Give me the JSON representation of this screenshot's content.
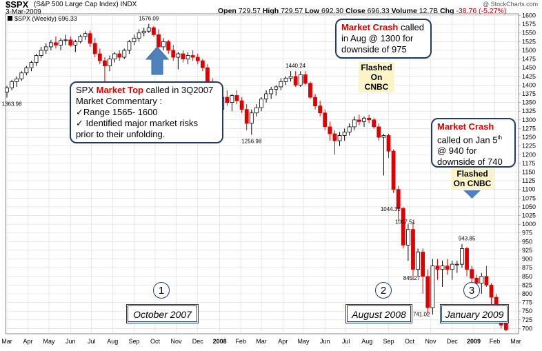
{
  "header": {
    "symbol": "$SPX",
    "name": "(S&P 500 Large Cap Index)",
    "exchange": "INDX",
    "watermark": "@ StockCharts.com",
    "date": "3-Mar-2009",
    "stats": {
      "open_label": "Open",
      "open": "729.57",
      "high_label": "High",
      "high": "729.57",
      "low_label": "Low",
      "low": "692.30",
      "close_label": "Close",
      "close": "696.33",
      "volume_label": "Volume",
      "volume": "12.7B",
      "chg_label": "Chg",
      "chg": "-38.76 (-5.27%)"
    },
    "legend": "$SPX (Weekly) 696.33"
  },
  "callouts": {
    "market_top": {
      "prefix": "SPX ",
      "highlight": "Market Top",
      "rest": " called in 3Q2007",
      "line2": "Market Commentary :",
      "line3": "✓Range 1565- 1600",
      "line4": "✓ Identified  major  market risks",
      "line5": "prior to their unfolding."
    },
    "crash_aug": {
      "highlight": "Market Crash",
      "rest": " called",
      "line2": "in Aug @ 1300 for",
      "line3": "downside of 975"
    },
    "crash_jan": {
      "highlight": "Market Crash",
      "line2a": "called on Jan 5",
      "line2sup": "th",
      "line3": "@ 940 for",
      "line4": "downside of 740"
    },
    "flash1": {
      "line1": "Flashed",
      "line2": "On CNBC"
    },
    "flash2": {
      "line1": "Flashed",
      "line2": "On CNBC"
    }
  },
  "markers": [
    {
      "number": "1",
      "label": "October 2007"
    },
    {
      "number": "2",
      "label": "August 2008"
    },
    {
      "number": "3",
      "label": "January 2009"
    }
  ],
  "chart_data": {
    "type": "bar",
    "style": "weekly-ohlc-candles",
    "ylim": [
      685,
      1605
    ],
    "ticks": {
      "min": 700,
      "max": 1600,
      "step": 25
    },
    "x_labels": [
      {
        "t": 0,
        "label": "Mar"
      },
      {
        "t": 4.3,
        "label": "Apr"
      },
      {
        "t": 8.6,
        "label": "May"
      },
      {
        "t": 13,
        "label": "Jun"
      },
      {
        "t": 17.3,
        "label": "Jul"
      },
      {
        "t": 21.6,
        "label": "Aug"
      },
      {
        "t": 26,
        "label": "Sep"
      },
      {
        "t": 30.3,
        "label": "Oct"
      },
      {
        "t": 34.6,
        "label": "Nov"
      },
      {
        "t": 39,
        "label": "Dec"
      },
      {
        "t": 43.5,
        "label": "2008",
        "bold": true
      },
      {
        "t": 47.8,
        "label": "Feb"
      },
      {
        "t": 52,
        "label": "Mar"
      },
      {
        "t": 56.4,
        "label": "Apr"
      },
      {
        "t": 60.6,
        "label": "May"
      },
      {
        "t": 65,
        "label": "Jun"
      },
      {
        "t": 69.3,
        "label": "Jul"
      },
      {
        "t": 73.6,
        "label": "Aug"
      },
      {
        "t": 78,
        "label": "Sep"
      },
      {
        "t": 82.3,
        "label": "Oct"
      },
      {
        "t": 86.6,
        "label": "Nov"
      },
      {
        "t": 91,
        "label": "Dec"
      },
      {
        "t": 95.4,
        "label": "2009",
        "bold": true
      },
      {
        "t": 99.7,
        "label": "Feb"
      },
      {
        "t": 104,
        "label": "Mar"
      }
    ],
    "candles": [
      [
        1380,
        1398,
        1364,
        1392
      ],
      [
        1392,
        1415,
        1385,
        1410
      ],
      [
        1410,
        1425,
        1395,
        1418
      ],
      [
        1418,
        1440,
        1412,
        1435
      ],
      [
        1435,
        1455,
        1428,
        1450
      ],
      [
        1450,
        1470,
        1440,
        1465
      ],
      [
        1465,
        1490,
        1455,
        1485
      ],
      [
        1485,
        1510,
        1478,
        1500
      ],
      [
        1500,
        1520,
        1490,
        1510
      ],
      [
        1510,
        1530,
        1500,
        1522
      ],
      [
        1522,
        1540,
        1505,
        1515
      ],
      [
        1515,
        1535,
        1500,
        1528
      ],
      [
        1528,
        1545,
        1515,
        1530
      ],
      [
        1530,
        1540,
        1510,
        1515
      ],
      [
        1515,
        1530,
        1495,
        1525
      ],
      [
        1525,
        1545,
        1520,
        1540
      ],
      [
        1540,
        1555,
        1530,
        1548
      ],
      [
        1548,
        1556,
        1510,
        1520
      ],
      [
        1520,
        1535,
        1480,
        1490
      ],
      [
        1490,
        1505,
        1460,
        1470
      ],
      [
        1470,
        1480,
        1400,
        1455
      ],
      [
        1455,
        1485,
        1440,
        1475
      ],
      [
        1475,
        1495,
        1465,
        1490
      ],
      [
        1490,
        1500,
        1470,
        1480
      ],
      [
        1480,
        1505,
        1475,
        1500
      ],
      [
        1500,
        1530,
        1490,
        1525
      ],
      [
        1525,
        1545,
        1515,
        1535
      ],
      [
        1535,
        1560,
        1525,
        1550
      ],
      [
        1550,
        1565,
        1540,
        1555
      ],
      [
        1555,
        1576,
        1550,
        1565
      ],
      [
        1565,
        1570,
        1540,
        1545
      ],
      [
        1545,
        1560,
        1500,
        1510
      ],
      [
        1510,
        1535,
        1500,
        1525
      ],
      [
        1525,
        1530,
        1490,
        1500
      ],
      [
        1500,
        1515,
        1470,
        1480
      ],
      [
        1480,
        1495,
        1445,
        1490
      ],
      [
        1490,
        1500,
        1465,
        1475
      ],
      [
        1475,
        1495,
        1460,
        1485
      ],
      [
        1485,
        1500,
        1470,
        1480
      ],
      [
        1480,
        1490,
        1460,
        1470
      ],
      [
        1470,
        1475,
        1440,
        1450
      ],
      [
        1450,
        1460,
        1400,
        1410
      ],
      [
        1410,
        1420,
        1360,
        1380
      ],
      [
        1380,
        1390,
        1305,
        1330
      ],
      [
        1330,
        1380,
        1320,
        1365
      ],
      [
        1365,
        1385,
        1340,
        1350
      ],
      [
        1350,
        1375,
        1325,
        1370
      ],
      [
        1370,
        1385,
        1345,
        1355
      ],
      [
        1355,
        1365,
        1320,
        1330
      ],
      [
        1330,
        1345,
        1270,
        1290
      ],
      [
        1290,
        1330,
        1257,
        1320
      ],
      [
        1320,
        1345,
        1310,
        1335
      ],
      [
        1335,
        1365,
        1325,
        1360
      ],
      [
        1360,
        1385,
        1350,
        1375
      ],
      [
        1375,
        1395,
        1360,
        1388
      ],
      [
        1388,
        1400,
        1370,
        1395
      ],
      [
        1395,
        1420,
        1385,
        1410
      ],
      [
        1410,
        1425,
        1400,
        1420
      ],
      [
        1420,
        1440,
        1410,
        1425
      ],
      [
        1425,
        1440,
        1395,
        1400
      ],
      [
        1400,
        1440,
        1395,
        1430
      ],
      [
        1430,
        1440,
        1400,
        1405
      ],
      [
        1405,
        1410,
        1360,
        1365
      ],
      [
        1365,
        1375,
        1330,
        1340
      ],
      [
        1340,
        1355,
        1310,
        1320
      ],
      [
        1320,
        1330,
        1270,
        1280
      ],
      [
        1280,
        1295,
        1240,
        1260
      ],
      [
        1260,
        1270,
        1200,
        1240
      ],
      [
        1240,
        1265,
        1225,
        1255
      ],
      [
        1255,
        1275,
        1240,
        1265
      ],
      [
        1265,
        1290,
        1255,
        1280
      ],
      [
        1280,
        1310,
        1270,
        1300
      ],
      [
        1300,
        1315,
        1285,
        1295
      ],
      [
        1295,
        1310,
        1280,
        1305
      ],
      [
        1305,
        1315,
        1290,
        1300
      ],
      [
        1300,
        1305,
        1275,
        1280
      ],
      [
        1280,
        1290,
        1240,
        1250
      ],
      [
        1250,
        1260,
        1140,
        1255
      ],
      [
        1255,
        1260,
        1190,
        1210
      ],
      [
        1210,
        1215,
        1090,
        1100
      ],
      [
        1100,
        1110,
        1010,
        1045
      ],
      [
        1045,
        1050,
        930,
        940
      ],
      [
        940,
        1000,
        895,
        985
      ],
      [
        985,
        1007,
        840,
        870
      ],
      [
        870,
        930,
        850,
        920
      ],
      [
        920,
        930,
        800,
        850
      ],
      [
        850,
        870,
        742,
        760
      ],
      [
        760,
        900,
        740,
        880
      ],
      [
        880,
        900,
        840,
        870
      ],
      [
        870,
        895,
        820,
        880
      ],
      [
        880,
        900,
        855,
        870
      ],
      [
        870,
        895,
        840,
        885
      ],
      [
        885,
        895,
        860,
        885
      ],
      [
        885,
        943,
        875,
        930
      ],
      [
        930,
        935,
        850,
        870
      ],
      [
        870,
        880,
        820,
        845
      ],
      [
        845,
        855,
        805,
        830
      ],
      [
        830,
        860,
        800,
        850
      ],
      [
        850,
        880,
        820,
        825
      ],
      [
        825,
        830,
        770,
        790
      ],
      [
        790,
        800,
        735,
        770
      ],
      [
        740,
        760,
        700,
        710
      ],
      [
        729.57,
        729.57,
        692.3,
        696.33
      ]
    ],
    "labels": [
      {
        "t": 1,
        "v": 1363.98,
        "text": "1363.98",
        "pos": "below"
      },
      {
        "t": 29,
        "v": 1576.09,
        "text": "1576.09",
        "pos": "above"
      },
      {
        "t": 50,
        "v": 1256.98,
        "text": "1256.98",
        "pos": "below"
      },
      {
        "t": 59,
        "v": 1440.24,
        "text": "1440.24",
        "pos": "above"
      },
      {
        "t": 81,
        "v": 1044.31,
        "text": "1044.31",
        "pos": "left"
      },
      {
        "t": 84,
        "v": 1007.51,
        "text": "1007.51",
        "pos": "left"
      },
      {
        "t": 85,
        "v": 845.27,
        "text": "845.27",
        "pos": "left"
      },
      {
        "t": 87,
        "v": 741.02,
        "text": "741.02",
        "pos": "left"
      },
      {
        "t": 94,
        "v": 943.85,
        "text": "943.85",
        "pos": "above"
      }
    ],
    "colors": {
      "up": "#000000",
      "down": "#dd0000",
      "grid": "#d9d9d9",
      "arrow": "#4f81bd"
    }
  }
}
